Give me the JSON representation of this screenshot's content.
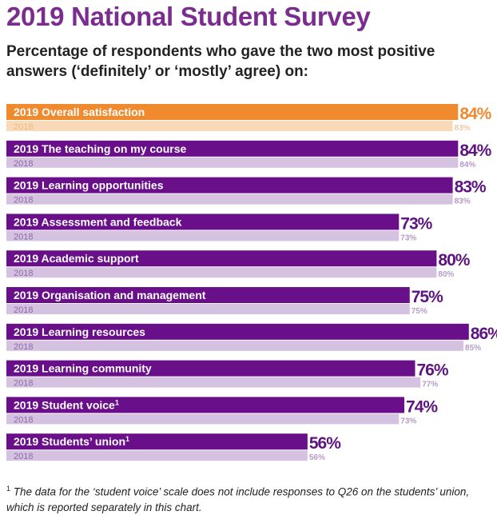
{
  "title": "2019 National Student Survey",
  "subtitle": "Percentage of respondents who gave the two most positive answers (‘definitely’ or ‘mostly’ agree) on:",
  "footnote_mark": "1",
  "footnote": "The data for the ‘student voice’ scale does not include responses to Q26 on the students’ union, which is reported separately in this chart.",
  "colors": {
    "overall_2019": "#F08A2E",
    "overall_2018": "#F9D9B8",
    "bar_2019": "#6A0F8A",
    "bar_2018": "#D5C2E0",
    "value_2019": "#5E1480",
    "value_2018": "#B59AC8",
    "overall_value_2019": "#F08A2E",
    "overall_value_2018": "#E8C9A8"
  },
  "chart_data": {
    "type": "bar",
    "orientation": "horizontal",
    "year_labels": {
      "current": "2019",
      "previous": "2018"
    },
    "value_suffix": "%",
    "xlim": [
      0,
      100
    ],
    "categories": [
      {
        "name": "Overall satisfaction",
        "footnote": ""
      },
      {
        "name": "The teaching on my course",
        "footnote": ""
      },
      {
        "name": "Learning opportunities",
        "footnote": ""
      },
      {
        "name": "Assessment and feedback",
        "footnote": ""
      },
      {
        "name": "Academic support",
        "footnote": ""
      },
      {
        "name": "Organisation and management",
        "footnote": ""
      },
      {
        "name": "Learning resources",
        "footnote": ""
      },
      {
        "name": "Learning community",
        "footnote": ""
      },
      {
        "name": "Student voice",
        "footnote": "1"
      },
      {
        "name": "Students’ union",
        "footnote": "1"
      }
    ],
    "series": [
      {
        "name": "2019",
        "values": [
          84,
          84,
          83,
          73,
          80,
          75,
          86,
          76,
          74,
          56
        ]
      },
      {
        "name": "2018",
        "values": [
          83,
          84,
          83,
          73,
          80,
          75,
          85,
          77,
          73,
          56
        ]
      }
    ]
  }
}
